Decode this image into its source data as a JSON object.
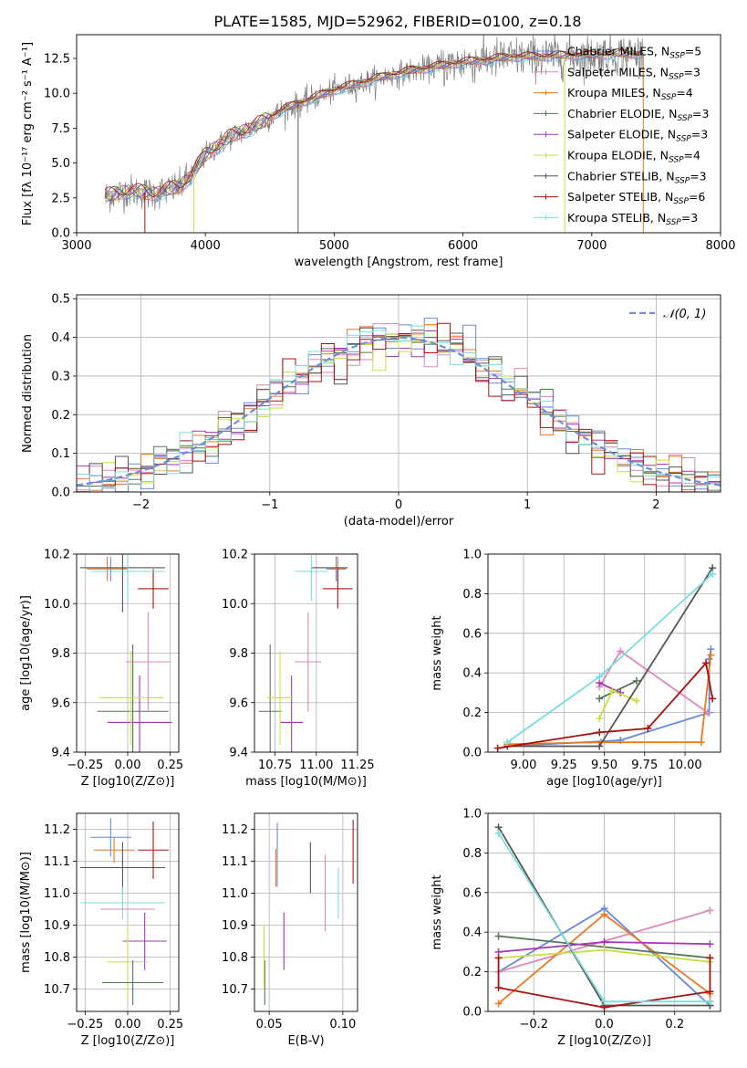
{
  "colors": {
    "cmiles": "#6688dd",
    "smiles": "#dd88bb",
    "kmiles": "#ee7722",
    "celodie": "#557755",
    "selodie": "#aa33bb",
    "kelodie": "#ccdd44",
    "cstelib": "#555555",
    "sstelib": "#aa1111",
    "kstelib": "#77dddd",
    "gauss": "#6a8fd8"
  },
  "chart_data": [
    {
      "id": "spectrum",
      "type": "line",
      "title": "PLATE=1585, MJD=52962, FIBERID=0100, z=0.18",
      "xlabel": "wavelength [Angstrom, rest frame]",
      "ylabel": "Flux [fλ 10⁻¹⁷ erg cm⁻² s⁻¹ A⁻¹]",
      "xlim": [
        3000,
        8000
      ],
      "ylim": [
        0,
        14.2
      ],
      "xticks": [
        3000,
        4000,
        5000,
        6000,
        7000,
        8000
      ],
      "yticks": [
        0.0,
        2.5,
        5.0,
        7.5,
        10.0,
        12.5
      ],
      "grid": false,
      "legend_position": "right",
      "spectrum_range": [
        3220,
        7400
      ],
      "continuum": {
        "x": [
          3220,
          3400,
          3600,
          3800,
          3900,
          4000,
          4200,
          4400,
          4600,
          4800,
          5000,
          5200,
          5400,
          5600,
          5800,
          6000,
          6200,
          6400,
          6600,
          6800,
          7000,
          7200,
          7400
        ],
        "y": [
          2.6,
          3.0,
          2.8,
          3.3,
          4.2,
          5.6,
          6.9,
          7.7,
          8.8,
          9.5,
          10.2,
          10.7,
          11.2,
          11.6,
          11.9,
          12.2,
          12.4,
          12.6,
          12.6,
          12.7,
          12.7,
          12.8,
          12.8
        ]
      },
      "legend": [
        {
          "label": "Chabrier MILES, N",
          "sub": "SSP",
          "tail": "=5",
          "color_key": "cmiles"
        },
        {
          "label": "Salpeter MILES, N",
          "sub": "SSP",
          "tail": "=3",
          "color_key": "smiles"
        },
        {
          "label": "Kroupa MILES, N",
          "sub": "SSP",
          "tail": "=4",
          "color_key": "kmiles"
        },
        {
          "label": "Chabrier ELODIE, N",
          "sub": "SSP",
          "tail": "=3",
          "color_key": "celodie"
        },
        {
          "label": "Salpeter ELODIE, N",
          "sub": "SSP",
          "tail": "=3",
          "color_key": "selodie"
        },
        {
          "label": "Kroupa ELODIE, N",
          "sub": "SSP",
          "tail": "=4",
          "color_key": "kelodie"
        },
        {
          "label": "Chabrier STELIB, N",
          "sub": "SSP",
          "tail": "=3",
          "color_key": "cstelib"
        },
        {
          "label": "Salpeter STELIB, N",
          "sub": "SSP",
          "tail": "=6",
          "color_key": "sstelib"
        },
        {
          "label": "Kroupa STELIB, N",
          "sub": "SSP",
          "tail": "=3",
          "color_key": "kstelib"
        }
      ]
    },
    {
      "id": "residuals",
      "type": "bar",
      "xlabel": "(data-model)/error",
      "ylabel": "Normed distribution",
      "xlim": [
        -2.5,
        2.5
      ],
      "ylim": [
        0,
        0.51
      ],
      "xticks": [
        -2,
        -1,
        0,
        1,
        2
      ],
      "yticks": [
        0.0,
        0.1,
        0.2,
        0.3,
        0.4,
        0.5
      ],
      "grid": true,
      "legend_position": "top-right",
      "gauss_label": "𝒩(0, 1)",
      "bin_width": 0.1,
      "gauss": {
        "mean": 0,
        "sigma": 1
      },
      "series_keys": [
        "cmiles",
        "smiles",
        "kmiles",
        "celodie",
        "selodie",
        "kelodie",
        "cstelib",
        "sstelib",
        "kstelib"
      ]
    },
    {
      "id": "age_vs_z",
      "type": "scatter",
      "xlabel": "Z [log10(Z/Z⊙)]",
      "ylabel": "age  [log10(age/yr)]",
      "xlim": [
        -0.3,
        0.3
      ],
      "ylim": [
        9.4,
        10.2
      ],
      "xticks": [
        -0.25,
        0.0,
        0.25
      ],
      "yticks": [
        9.4,
        9.6,
        9.8,
        10.0,
        10.2
      ],
      "grid": true,
      "points": [
        {
          "key": "cmiles",
          "x": -0.1,
          "y": 10.14,
          "xerr": 0.0,
          "yerr": 0.05
        },
        {
          "key": "smiles",
          "x": -0.22,
          "y": 10.14,
          "xerr": 0.0,
          "yerr": 0.0
        },
        {
          "key": "kmiles",
          "x": -0.12,
          "y": 10.14,
          "xerr": 0.12,
          "yerr": 0.05
        },
        {
          "key": "celodie",
          "x": 0.03,
          "y": 9.565,
          "xerr": 0.21,
          "yerr": 0.27
        },
        {
          "key": "selodie",
          "x": 0.07,
          "y": 9.52,
          "xerr": 0.19,
          "yerr": 0.19
        },
        {
          "key": "kelodie",
          "x": 0.02,
          "y": 9.62,
          "xerr": 0.19,
          "yerr": 0.19
        },
        {
          "key": "cstelib",
          "x": -0.03,
          "y": 10.145,
          "xerr": 0.25,
          "yerr": 0.18
        },
        {
          "key": "sstelib",
          "x": 0.15,
          "y": 10.06,
          "xerr": 0.09,
          "yerr": 0.08
        },
        {
          "key": "kstelib",
          "x": 0.0,
          "y": 10.13,
          "xerr": 0.22,
          "yerr": 0.12
        },
        {
          "key": "smiles",
          "x": 0.12,
          "y": 9.765,
          "xerr": 0.13,
          "yerr": 0.2
        }
      ]
    },
    {
      "id": "age_vs_mass",
      "type": "scatter",
      "xlabel": "mass [log10(M/M⊙)]",
      "xlim": [
        10.625,
        11.25
      ],
      "ylim": [
        9.4,
        10.2
      ],
      "xticks": [
        10.75,
        11.0,
        11.25
      ],
      "yticks": [
        9.4,
        9.6,
        9.8,
        10.0,
        10.2
      ],
      "grid": true,
      "points": [
        {
          "key": "cmiles",
          "x": 11.12,
          "y": 10.14,
          "xerr": 0.06,
          "yerr": 0.05
        },
        {
          "key": "kmiles",
          "x": 11.13,
          "y": 10.14,
          "xerr": 0.05,
          "yerr": 0.05
        },
        {
          "key": "celodie",
          "x": 10.72,
          "y": 9.565,
          "xerr": 0.07,
          "yerr": 0.27
        },
        {
          "key": "selodie",
          "x": 10.85,
          "y": 9.52,
          "xerr": 0.07,
          "yerr": 0.19
        },
        {
          "key": "kelodie",
          "x": 10.78,
          "y": 9.62,
          "xerr": 0.08,
          "yerr": 0.19
        },
        {
          "key": "cstelib",
          "x": 11.08,
          "y": 10.145,
          "xerr": 0.11,
          "yerr": 0.0
        },
        {
          "key": "sstelib",
          "x": 11.13,
          "y": 10.06,
          "xerr": 0.09,
          "yerr": 0.08
        },
        {
          "key": "kstelib",
          "x": 10.97,
          "y": 10.13,
          "xerr": 0.1,
          "yerr": 0.12
        },
        {
          "key": "smiles",
          "x": 10.95,
          "y": 9.765,
          "xerr": 0.08,
          "yerr": 0.2
        }
      ]
    },
    {
      "id": "weight_vs_age",
      "type": "line",
      "xlabel": "age  [log10(age/yr)]",
      "ylabel": "mass weight",
      "xlim": [
        8.78,
        10.22
      ],
      "ylim": [
        0,
        1
      ],
      "xticks": [
        9.0,
        9.25,
        9.5,
        9.75,
        10.0
      ],
      "yticks": [
        0.0,
        0.2,
        0.4,
        0.6,
        0.8,
        1.0
      ],
      "grid": true,
      "series": [
        {
          "key": "cmiles",
          "x": [
            8.9,
            9.6,
            10.15,
            10.15,
            10.16
          ],
          "y": [
            0.03,
            0.06,
            0.2,
            0.47,
            0.52
          ]
        },
        {
          "key": "smiles",
          "x": [
            9.47,
            9.6,
            10.14
          ],
          "y": [
            0.33,
            0.51,
            0.2
          ]
        },
        {
          "key": "kmiles",
          "x": [
            8.9,
            9.48,
            10.1,
            10.16
          ],
          "y": [
            0.04,
            0.05,
            0.05,
            0.49
          ]
        },
        {
          "key": "celodie",
          "x": [
            9.47,
            9.7
          ],
          "y": [
            0.27,
            0.36
          ]
        },
        {
          "key": "selodie",
          "x": [
            9.47,
            9.6
          ],
          "y": [
            0.35,
            0.3
          ]
        },
        {
          "key": "kelodie",
          "x": [
            9.47,
            9.55,
            9.7
          ],
          "y": [
            0.17,
            0.31,
            0.26
          ]
        },
        {
          "key": "cstelib",
          "x": [
            8.9,
            9.47,
            10.17
          ],
          "y": [
            0.03,
            0.03,
            0.93
          ]
        },
        {
          "key": "sstelib",
          "x": [
            8.84,
            9.47,
            9.77,
            10.13,
            10.17
          ],
          "y": [
            0.02,
            0.1,
            0.12,
            0.45,
            0.27
          ]
        },
        {
          "key": "kstelib",
          "x": [
            8.9,
            9.47,
            10.17
          ],
          "y": [
            0.05,
            0.38,
            0.9
          ]
        }
      ]
    },
    {
      "id": "mass_vs_z",
      "type": "scatter",
      "xlabel": "Z [log10(Z/Z⊙)]",
      "ylabel": "mass [log10(M/M⊙)]",
      "xlim": [
        -0.3,
        0.3
      ],
      "ylim": [
        10.63,
        11.25
      ],
      "xticks": [
        -0.25,
        0.0,
        0.25
      ],
      "yticks": [
        10.7,
        10.8,
        10.9,
        11.0,
        11.1,
        11.2
      ],
      "grid": true,
      "points": [
        {
          "key": "cmiles",
          "x": -0.1,
          "y": 11.175,
          "xerr": 0.12,
          "yerr": 0.06
        },
        {
          "key": "kmiles",
          "x": -0.08,
          "y": 11.135,
          "xerr": 0.12,
          "yerr": 0.04
        },
        {
          "key": "cstelib",
          "x": -0.03,
          "y": 11.08,
          "xerr": 0.25,
          "yerr": 0.08
        },
        {
          "key": "sstelib",
          "x": 0.15,
          "y": 11.135,
          "xerr": 0.09,
          "yerr": 0.09
        },
        {
          "key": "kstelib",
          "x": -0.03,
          "y": 10.97,
          "xerr": 0.25,
          "yerr": 0.05
        },
        {
          "key": "smiles",
          "x": 0.0,
          "y": 10.95,
          "xerr": 0.16,
          "yerr": 0.0
        },
        {
          "key": "selodie",
          "x": 0.1,
          "y": 10.85,
          "xerr": 0.13,
          "yerr": 0.09
        },
        {
          "key": "kelodie",
          "x": 0.0,
          "y": 10.785,
          "xerr": 0.12,
          "yerr": 0.12
        },
        {
          "key": "celodie",
          "x": 0.03,
          "y": 10.72,
          "xerr": 0.18,
          "yerr": 0.07
        }
      ]
    },
    {
      "id": "mass_vs_ebv",
      "type": "scatter",
      "xlabel": "E(B-V)",
      "xlim": [
        0.04,
        0.11
      ],
      "ylim": [
        10.63,
        11.25
      ],
      "xticks": [
        0.05,
        0.1
      ],
      "yticks": [
        10.7,
        10.8,
        10.9,
        11.0,
        11.1,
        11.2
      ],
      "grid": true,
      "points": [
        {
          "key": "cmiles",
          "x": 0.0555,
          "y": 11.12,
          "xerr": 0.0,
          "yerr": 0.1
        },
        {
          "key": "kmiles",
          "x": 0.0545,
          "y": 11.08,
          "xerr": 0.0,
          "yerr": 0.06
        },
        {
          "key": "celodie",
          "x": 0.047,
          "y": 10.72,
          "xerr": 0.0,
          "yerr": 0.07
        },
        {
          "key": "kelodie",
          "x": 0.0465,
          "y": 10.8,
          "xerr": 0.0,
          "yerr": 0.1
        },
        {
          "key": "selodie",
          "x": 0.06,
          "y": 10.85,
          "xerr": 0.0,
          "yerr": 0.09
        },
        {
          "key": "cstelib",
          "x": 0.078,
          "y": 11.08,
          "xerr": 0.0,
          "yerr": 0.08
        },
        {
          "key": "smiles",
          "x": 0.088,
          "y": 11.0,
          "xerr": 0.0,
          "yerr": 0.12
        },
        {
          "key": "kstelib",
          "x": 0.097,
          "y": 11.0,
          "xerr": 0.0,
          "yerr": 0.08
        },
        {
          "key": "sstelib",
          "x": 0.107,
          "y": 11.13,
          "xerr": 0.0,
          "yerr": 0.1
        }
      ]
    },
    {
      "id": "weight_vs_z",
      "type": "line",
      "xlabel": "Z [log10(Z/Z⊙)]",
      "ylabel": "mass weight",
      "xlim": [
        -0.33,
        0.33
      ],
      "ylim": [
        0,
        1
      ],
      "xticks": [
        -0.2,
        0.0,
        0.2
      ],
      "yticks": [
        0.0,
        0.2,
        0.4,
        0.6,
        0.8,
        1.0
      ],
      "grid": true,
      "series": [
        {
          "key": "cmiles",
          "x": [
            -0.3,
            0.0,
            0.3,
            0.3
          ],
          "y": [
            0.2,
            0.52,
            0.03,
            0.05
          ]
        },
        {
          "key": "smiles",
          "x": [
            -0.3,
            0.3
          ],
          "y": [
            0.2,
            0.51
          ]
        },
        {
          "key": "kmiles",
          "x": [
            -0.3,
            0.0,
            0.3,
            0.3
          ],
          "y": [
            0.04,
            0.49,
            0.09,
            0.05
          ]
        },
        {
          "key": "celodie",
          "x": [
            -0.3,
            0.3
          ],
          "y": [
            0.38,
            0.27
          ]
        },
        {
          "key": "selodie",
          "x": [
            -0.3,
            0.0,
            0.3
          ],
          "y": [
            0.3,
            0.35,
            0.34
          ]
        },
        {
          "key": "kelodie",
          "x": [
            -0.3,
            0.0,
            0.3
          ],
          "y": [
            0.27,
            0.31,
            0.25
          ]
        },
        {
          "key": "cstelib",
          "x": [
            -0.3,
            0.0,
            0.3
          ],
          "y": [
            0.93,
            0.03,
            0.03
          ]
        },
        {
          "key": "sstelib",
          "x": [
            -0.3,
            -0.3,
            0.0,
            0.3,
            0.3
          ],
          "y": [
            0.27,
            0.12,
            0.02,
            0.1,
            0.27
          ]
        },
        {
          "key": "kstelib",
          "x": [
            -0.3,
            0.0,
            0.3
          ],
          "y": [
            0.9,
            0.05,
            0.05
          ]
        }
      ]
    }
  ]
}
